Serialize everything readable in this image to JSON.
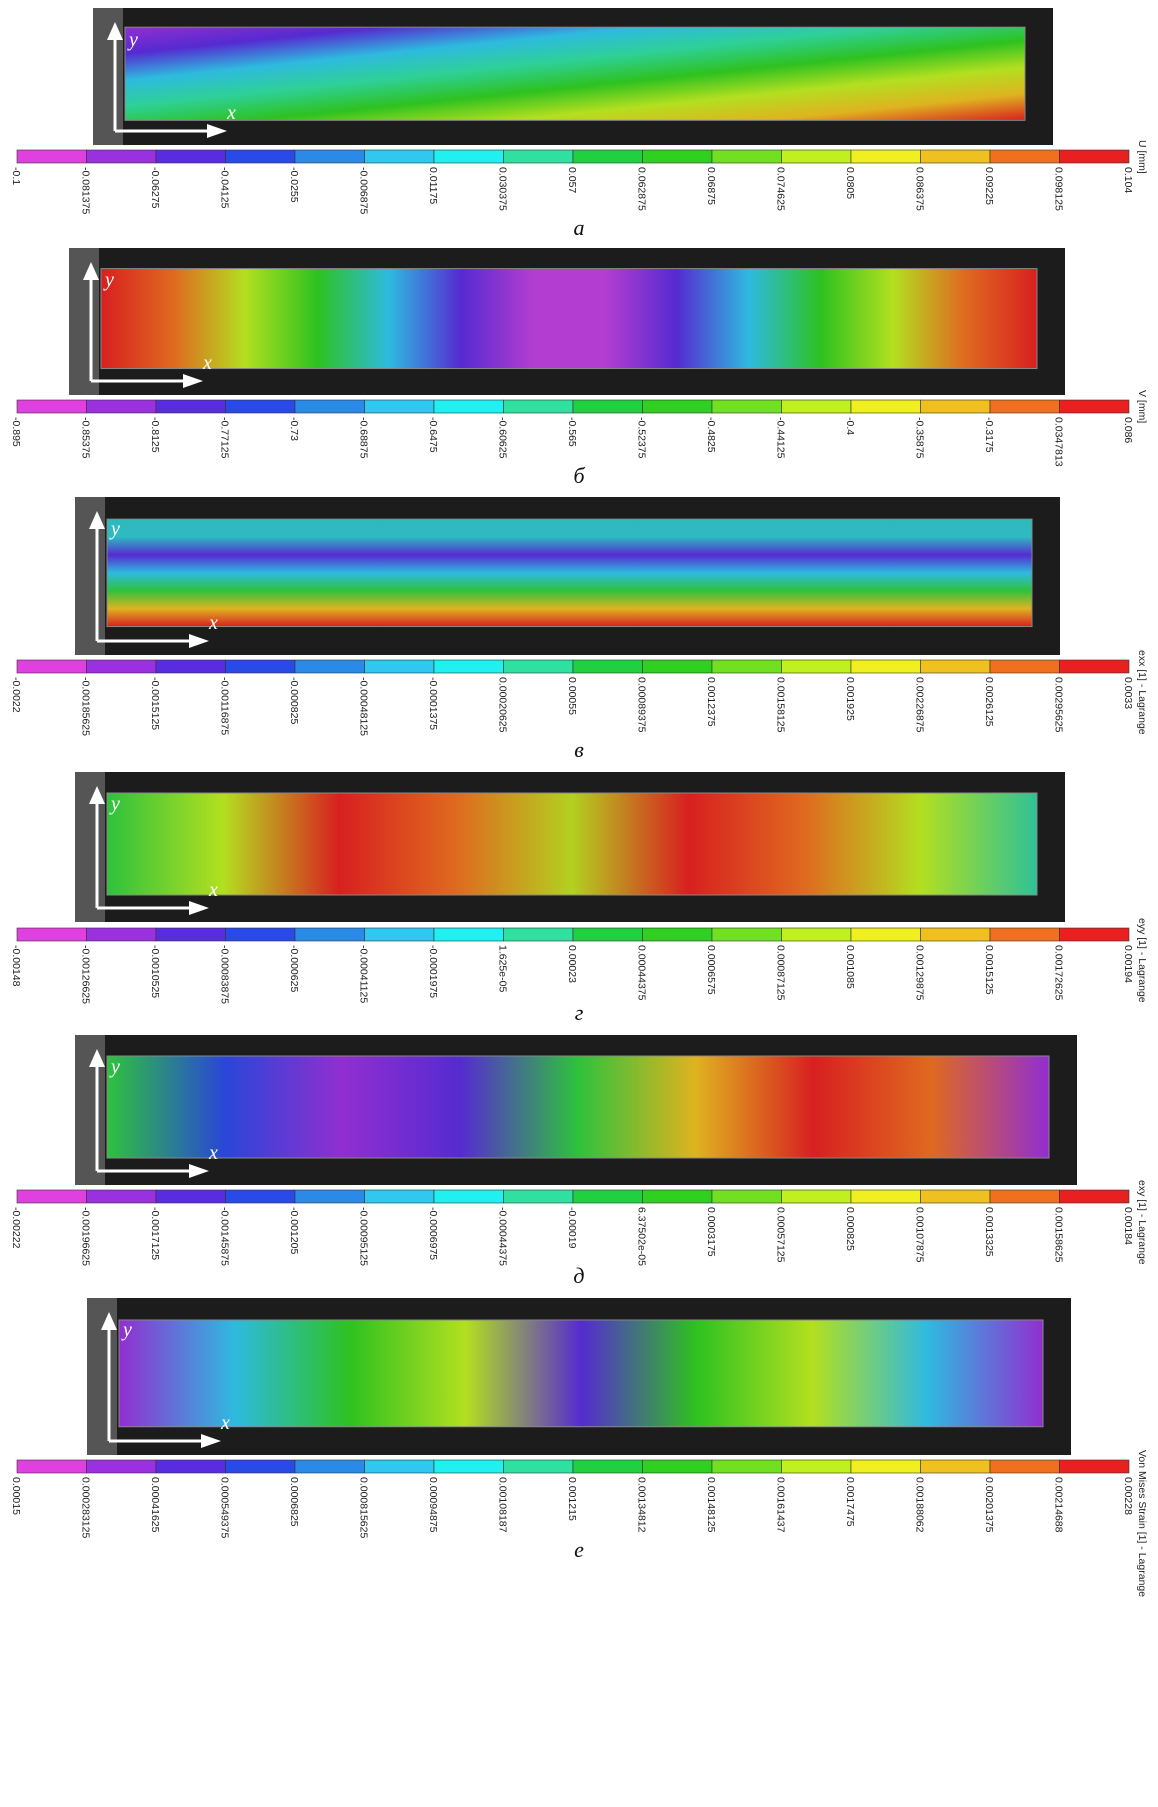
{
  "colorbar_colors": [
    "#e040e0",
    "#9b30e0",
    "#5a2ce0",
    "#2a4ae8",
    "#2a8ae8",
    "#30c8f0",
    "#20f0f0",
    "#30e0a0",
    "#20d040",
    "#30d020",
    "#70e020",
    "#c0f020",
    "#f0f020",
    "#f0c020",
    "#f07020",
    "#e82020"
  ],
  "panels": [
    {
      "caption": "а",
      "quantity": "U [mm]",
      "axis_labels": {
        "x": "x",
        "y": "y"
      },
      "ticks": [
        "-0.1",
        "-0.081375",
        "-0.06275",
        "-0.04125",
        "-0.0255",
        "-0.006875",
        "0.01175",
        "0.030375",
        "0.057",
        "0.062875",
        "0.06875",
        "0.074625",
        "0.0805",
        "0.086375",
        "0.09225",
        "0.098125",
        "0.104"
      ]
    },
    {
      "caption": "б",
      "quantity": "V [mm]",
      "axis_labels": {
        "x": "x",
        "y": "y"
      },
      "ticks": [
        "-0.895",
        "-0.85375",
        "-0.8125",
        "-0.77125",
        "-0.73",
        "-0.68875",
        "-0.6475",
        "-0.60625",
        "-0.565",
        "-0.52375",
        "-0.4825",
        "-0.44125",
        "-0.4",
        "-0.35875",
        "-0.3175",
        "0.0347813",
        "0.086"
      ]
    },
    {
      "caption": "в",
      "quantity": "exx [1] - Lagrange",
      "axis_labels": {
        "x": "x",
        "y": "y"
      },
      "ticks": [
        "-0.0022",
        "-0.00185625",
        "-0.0015125",
        "-0.00116875",
        "-0.000825",
        "-0.00048125",
        "-0.0001375",
        "0.00020625",
        "0.00055",
        "0.00089375",
        "0.0012375",
        "0.00158125",
        "0.001925",
        "0.00226875",
        "0.0026125",
        "0.00295625",
        "0.0033"
      ]
    },
    {
      "caption": "г",
      "quantity": "eyy [1] - Lagrange",
      "axis_labels": {
        "x": "x",
        "y": "y"
      },
      "ticks": [
        "-0.00148",
        "-0.00126625",
        "-0.0010525",
        "-0.00083875",
        "-0.000625",
        "-0.00041125",
        "-0.0001975",
        "1.625e-05",
        "0.00023",
        "0.00044375",
        "0.0006575",
        "0.00087125",
        "0.001085",
        "0.00129875",
        "0.0015125",
        "0.00172625",
        "0.00194"
      ]
    },
    {
      "caption": "д",
      "quantity": "exy [1] - Lagrange",
      "axis_labels": {
        "x": "x",
        "y": "y"
      },
      "ticks": [
        "-0.00222",
        "-0.00196625",
        "-0.0017125",
        "-0.00145875",
        "-0.001205",
        "-0.00095125",
        "-0.0006975",
        "-0.00044375",
        "-0.00019",
        "6.37502e-05",
        "0.0003175",
        "0.00057125",
        "0.000825",
        "0.00107875",
        "0.0013325",
        "0.00158625",
        "0.00184"
      ]
    },
    {
      "caption": "е",
      "quantity": "Von Mises Strain [1] - Lagrange",
      "axis_labels": {
        "x": "x",
        "y": "y"
      },
      "ticks": [
        "0.00015",
        "0.000283125",
        "0.00041625",
        "0.000549375",
        "0.0006825",
        "0.000815625",
        "0.00094875",
        "0.00108187",
        "0.001215",
        "0.00134812",
        "0.00148125",
        "0.00161437",
        "0.0017475",
        "0.00188062",
        "0.00201375",
        "0.00214688",
        "0.00228"
      ]
    }
  ]
}
